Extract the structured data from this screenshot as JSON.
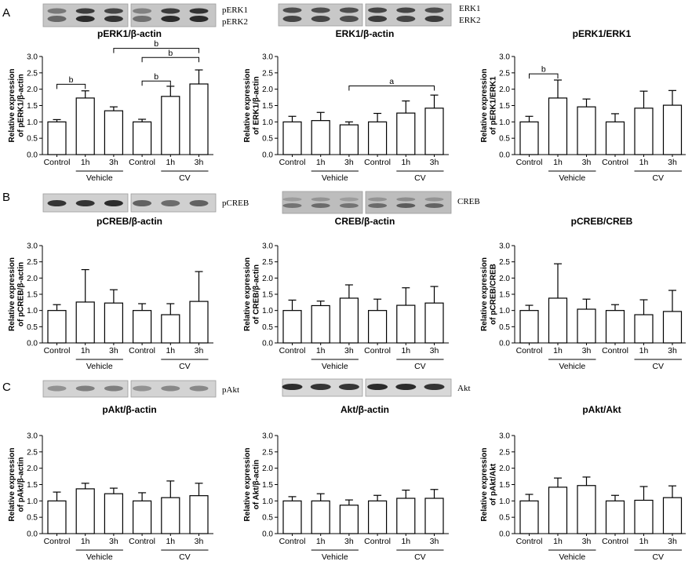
{
  "panels": [
    {
      "letter": "A",
      "blots": [
        {
          "labels": [
            "pERK1",
            "pERK2"
          ]
        },
        {
          "labels": [
            "ERK1",
            "ERK2"
          ]
        }
      ]
    },
    {
      "letter": "B",
      "blots": [
        {
          "labels": [
            "pCREB"
          ]
        },
        {
          "labels": [
            "CREB"
          ]
        }
      ]
    },
    {
      "letter": "C",
      "blots": [
        {
          "labels": [
            "pAkt"
          ]
        },
        {
          "labels": [
            "Akt"
          ]
        }
      ]
    }
  ],
  "colors": {
    "bar_fill": "#ffffff",
    "bar_edge": "#000000"
  },
  "chart_data": [
    {
      "type": "bar",
      "title": "pERK1/β-actin",
      "ylabel": [
        "Relative expression",
        "of pERK1/β-actin"
      ],
      "categories": [
        "Control",
        "1h",
        "3h",
        "Control",
        "1h",
        "3h"
      ],
      "groups": [
        {
          "name": "Vehicle",
          "from": 1,
          "to": 2
        },
        {
          "name": "CV",
          "from": 4,
          "to": 5
        }
      ],
      "values": [
        1.0,
        1.73,
        1.34,
        1.0,
        1.78,
        2.16
      ],
      "error": [
        0.07,
        0.22,
        0.12,
        0.08,
        0.31,
        0.43
      ],
      "ylim": [
        0,
        3
      ],
      "yticks": [
        "0.0",
        "0.5",
        "1.0",
        "1.5",
        "2.0",
        "2.5",
        "3.0"
      ],
      "significance": [
        {
          "from": 0,
          "to": 1,
          "label": "b"
        },
        {
          "from": 3,
          "to": 4,
          "label": "b"
        },
        {
          "from": 3,
          "to": 5,
          "label": "b"
        },
        {
          "from": 2,
          "to": 5,
          "label": "b"
        }
      ]
    },
    {
      "type": "bar",
      "title": "ERK1/β-actin",
      "ylabel": [
        "Relative expression",
        "of ERK1/β-actin"
      ],
      "categories": [
        "Control",
        "1h",
        "3h",
        "Control",
        "1h",
        "3h"
      ],
      "groups": [
        {
          "name": "Vehicle",
          "from": 1,
          "to": 2
        },
        {
          "name": "CV",
          "from": 4,
          "to": 5
        }
      ],
      "values": [
        1.0,
        1.04,
        0.91,
        1.0,
        1.27,
        1.42
      ],
      "error": [
        0.17,
        0.25,
        0.09,
        0.26,
        0.37,
        0.4
      ],
      "ylim": [
        0,
        3
      ],
      "yticks": [
        "0.0",
        "0.5",
        "1.0",
        "1.5",
        "2.0",
        "2.5",
        "3.0"
      ],
      "significance": [
        {
          "from": 2,
          "to": 5,
          "label": "a"
        }
      ]
    },
    {
      "type": "bar",
      "title": "pERK1/ERK1",
      "ylabel": [
        "Relative expression",
        "of pERK1/ERK1"
      ],
      "categories": [
        "Control",
        "1h",
        "3h",
        "Control",
        "1h",
        "3h"
      ],
      "groups": [
        {
          "name": "Vehicle",
          "from": 1,
          "to": 2
        },
        {
          "name": "CV",
          "from": 4,
          "to": 5
        }
      ],
      "values": [
        1.0,
        1.73,
        1.46,
        1.0,
        1.42,
        1.51
      ],
      "error": [
        0.17,
        0.55,
        0.24,
        0.25,
        0.52,
        0.45
      ],
      "ylim": [
        0,
        3
      ],
      "yticks": [
        "0.0",
        "0.5",
        "1.0",
        "1.5",
        "2.0",
        "2.5",
        "3.0"
      ],
      "significance": [
        {
          "from": 0,
          "to": 1,
          "label": "b"
        }
      ]
    },
    {
      "type": "bar",
      "title": "pCREB/β-actin",
      "ylabel": [
        "Relative expression",
        "of pCREB/β-actin"
      ],
      "categories": [
        "Control",
        "1h",
        "3h",
        "Control",
        "1h",
        "3h"
      ],
      "groups": [
        {
          "name": "Vehicle",
          "from": 1,
          "to": 2
        },
        {
          "name": "CV",
          "from": 4,
          "to": 5
        }
      ],
      "values": [
        1.0,
        1.26,
        1.23,
        1.0,
        0.87,
        1.28
      ],
      "error": [
        0.18,
        1.0,
        0.41,
        0.21,
        0.34,
        0.92
      ],
      "ylim": [
        0,
        3
      ],
      "yticks": [
        "0.0",
        "0.5",
        "1.0",
        "1.5",
        "2.0",
        "2.5",
        "3.0"
      ],
      "significance": []
    },
    {
      "type": "bar",
      "title": "CREB/β-actin",
      "ylabel": [
        "Relative expression",
        "of CREB/β-actin"
      ],
      "categories": [
        "Control",
        "1h",
        "3h",
        "Control",
        "1h",
        "3h"
      ],
      "groups": [
        {
          "name": "Vehicle",
          "from": 1,
          "to": 2
        },
        {
          "name": "CV",
          "from": 4,
          "to": 5
        }
      ],
      "values": [
        1.0,
        1.15,
        1.38,
        1.0,
        1.16,
        1.23
      ],
      "error": [
        0.32,
        0.14,
        0.41,
        0.35,
        0.54,
        0.51
      ],
      "ylim": [
        0,
        3
      ],
      "yticks": [
        "0.0",
        "0.5",
        "1.0",
        "1.5",
        "2.0",
        "2.5",
        "3.0"
      ],
      "significance": []
    },
    {
      "type": "bar",
      "title": "pCREB/CREB",
      "ylabel": [
        "Relative expression",
        "of pCREB/CREB"
      ],
      "categories": [
        "Control",
        "1h",
        "3h",
        "Control",
        "1h",
        "3h"
      ],
      "groups": [
        {
          "name": "Vehicle",
          "from": 1,
          "to": 2
        },
        {
          "name": "CV",
          "from": 4,
          "to": 5
        }
      ],
      "values": [
        1.0,
        1.38,
        1.04,
        1.0,
        0.87,
        0.97
      ],
      "error": [
        0.16,
        1.06,
        0.31,
        0.18,
        0.46,
        0.65
      ],
      "ylim": [
        0,
        3
      ],
      "yticks": [
        "0.0",
        "0.5",
        "1.0",
        "1.5",
        "2.0",
        "2.5",
        "3.0"
      ],
      "significance": []
    },
    {
      "type": "bar",
      "title": "pAkt/β-actin",
      "ylabel": [
        "Relative expression",
        "of pAkt/β-actin"
      ],
      "categories": [
        "Control",
        "1h",
        "3h",
        "Control",
        "1h",
        "3h"
      ],
      "groups": [
        {
          "name": "Vehicle",
          "from": 1,
          "to": 2
        },
        {
          "name": "CV",
          "from": 4,
          "to": 5
        }
      ],
      "values": [
        1.0,
        1.37,
        1.22,
        1.0,
        1.1,
        1.16
      ],
      "error": [
        0.27,
        0.17,
        0.17,
        0.25,
        0.51,
        0.38
      ],
      "ylim": [
        0,
        3
      ],
      "yticks": [
        "0.0",
        "0.5",
        "1.0",
        "1.5",
        "2.0",
        "2.5",
        "3.0"
      ],
      "significance": []
    },
    {
      "type": "bar",
      "title": "Akt/β-actin",
      "ylabel": [
        "Relative expression",
        "of Akt/β-actin"
      ],
      "categories": [
        "Control",
        "1h",
        "3h",
        "Control",
        "1h",
        "3h"
      ],
      "groups": [
        {
          "name": "Vehicle",
          "from": 1,
          "to": 2
        },
        {
          "name": "CV",
          "from": 4,
          "to": 5
        }
      ],
      "values": [
        1.0,
        1.0,
        0.87,
        1.0,
        1.08,
        1.08
      ],
      "error": [
        0.13,
        0.22,
        0.16,
        0.17,
        0.25,
        0.27
      ],
      "ylim": [
        0,
        3
      ],
      "yticks": [
        "0.0",
        "0.5",
        "1.0",
        "1.5",
        "2.0",
        "2.5",
        "3.0"
      ],
      "significance": []
    },
    {
      "type": "bar",
      "title": "pAkt/Akt",
      "ylabel": [
        "Relative expression",
        "of pAkt/Akt"
      ],
      "categories": [
        "Control",
        "1h",
        "3h",
        "Control",
        "1h",
        "3h"
      ],
      "groups": [
        {
          "name": "Vehicle",
          "from": 1,
          "to": 2
        },
        {
          "name": "CV",
          "from": 4,
          "to": 5
        }
      ],
      "values": [
        1.0,
        1.42,
        1.47,
        1.0,
        1.02,
        1.1
      ],
      "error": [
        0.2,
        0.28,
        0.26,
        0.17,
        0.42,
        0.36
      ],
      "ylim": [
        0,
        3
      ],
      "yticks": [
        "0.0",
        "0.5",
        "1.0",
        "1.5",
        "2.0",
        "2.5",
        "3.0"
      ],
      "significance": []
    }
  ]
}
